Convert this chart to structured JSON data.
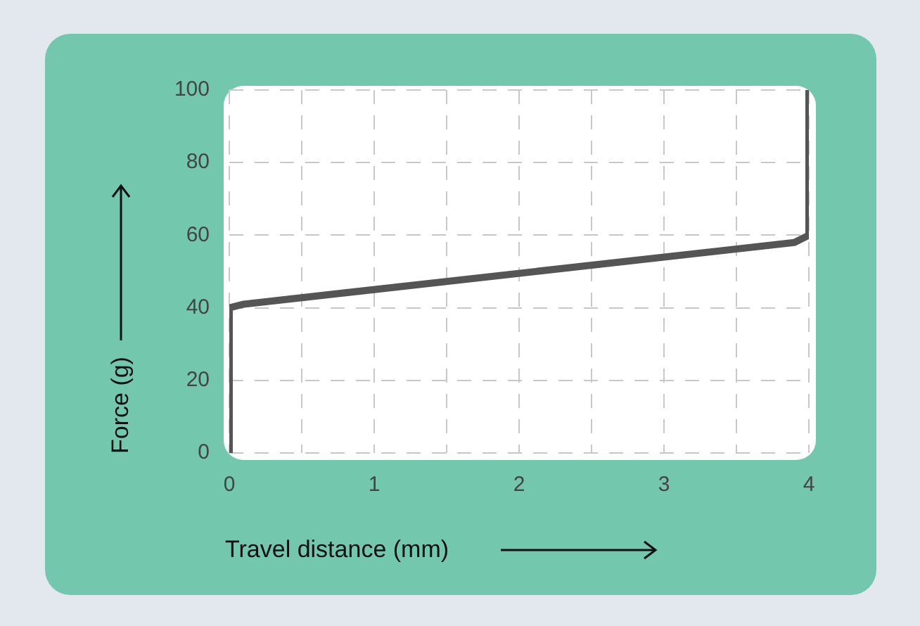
{
  "chart_data": {
    "type": "line",
    "xlabel": "Travel distance (mm)",
    "ylabel": "Force (g)",
    "x": [
      0,
      0,
      0.1,
      3.9,
      4,
      4
    ],
    "series": [
      {
        "color": "#555555",
        "values": [
          0,
          40,
          41,
          58,
          60,
          100
        ]
      }
    ],
    "xlim": [
      0,
      4
    ],
    "ylim": [
      0,
      100
    ],
    "xticks": [
      0,
      {
        "value": 0.5,
        "label": null
      },
      1,
      {
        "value": 1.5,
        "label": null
      },
      2,
      {
        "value": 2.5,
        "label": null
      },
      3,
      {
        "value": 3.5,
        "label": null
      },
      4
    ],
    "yticks": [
      0,
      20,
      40,
      60,
      80,
      100
    ],
    "grid": true,
    "legend": false,
    "marker": "none",
    "line_style": "solid"
  }
}
